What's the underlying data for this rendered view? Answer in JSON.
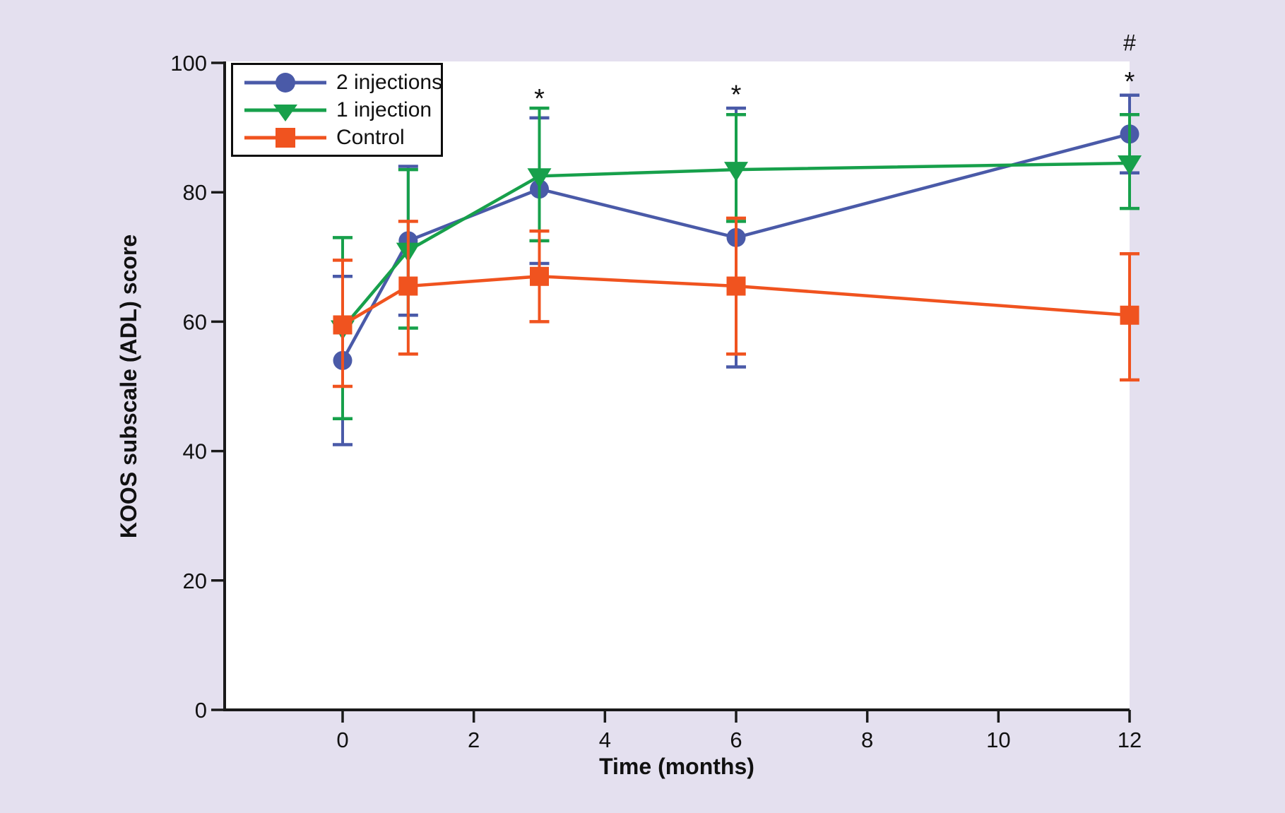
{
  "chart_data": {
    "type": "line",
    "title": "",
    "xlabel": "Time (months)",
    "ylabel": "KOOS subscale (ADL) score",
    "x": [
      0,
      1,
      3,
      6,
      12
    ],
    "x_ticks": [
      0,
      2,
      4,
      6,
      8,
      10,
      12
    ],
    "y_ticks": [
      0,
      20,
      40,
      60,
      80,
      100
    ],
    "xlim": [
      -1.8,
      12
    ],
    "ylim": [
      0,
      100
    ],
    "grid": false,
    "legend_position": "top-left",
    "error_bars": true,
    "series": [
      {
        "name": "2 injections",
        "color": "#4a5aa8",
        "marker": "circle",
        "values": [
          54,
          72.5,
          80.5,
          73,
          89
        ],
        "err_low": [
          41,
          61,
          69,
          53,
          83
        ],
        "err_high": [
          67,
          84,
          91.5,
          93,
          95
        ]
      },
      {
        "name": "1 injection",
        "color": "#17a04b",
        "marker": "triangle-down",
        "values": [
          59,
          71,
          82.5,
          83.5,
          84.5
        ],
        "err_low": [
          45,
          59,
          72.5,
          75.5,
          77.5
        ],
        "err_high": [
          73,
          83.5,
          93,
          92,
          92
        ]
      },
      {
        "name": "Control",
        "color": "#f0531f",
        "marker": "square",
        "values": [
          59.5,
          65.5,
          67,
          65.5,
          61
        ],
        "err_low": [
          50,
          55,
          60,
          55,
          51
        ],
        "err_high": [
          69.5,
          75.5,
          74,
          76,
          70.5
        ]
      }
    ],
    "annotations": [
      {
        "text": "*",
        "x": 3,
        "y": 95.3
      },
      {
        "text": "*",
        "x": 6,
        "y": 95.9
      },
      {
        "text": "*",
        "x": 12,
        "y": 97.9
      },
      {
        "text": "#",
        "x": 12,
        "y": 103.2
      }
    ]
  },
  "colors": {
    "background": "#e4e0ef",
    "plot_background": "#ffffff",
    "axis": "#1a1a1a",
    "text": "#111111"
  }
}
